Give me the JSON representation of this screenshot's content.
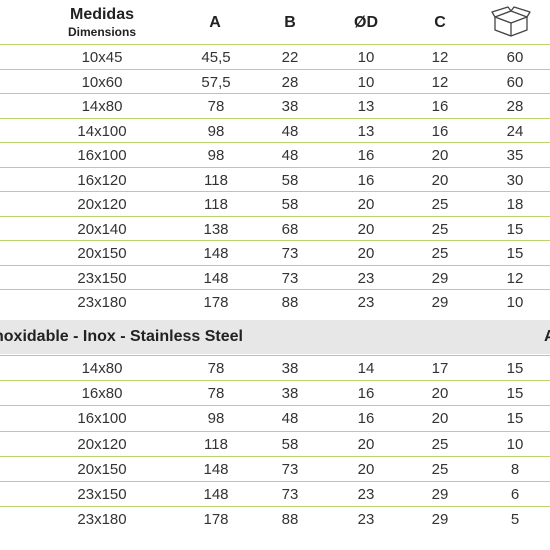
{
  "header": {
    "medidas": "Medidas",
    "dimensions": "Dimensions",
    "col_a": "A",
    "col_b": "B",
    "col_d": "ØD",
    "col_c": "C",
    "box_icon": "box-icon"
  },
  "colors": {
    "divider": "#b9d46a",
    "band": "#e7e7e7"
  },
  "table1": [
    [
      "10x45",
      "45,5",
      "22",
      "10",
      "12",
      "60"
    ],
    [
      "10x60",
      "57,5",
      "28",
      "10",
      "12",
      "60"
    ],
    [
      "14x80",
      "78",
      "38",
      "13",
      "16",
      "28"
    ],
    [
      "14x100",
      "98",
      "48",
      "13",
      "16",
      "24"
    ],
    [
      "16x100",
      "98",
      "48",
      "16",
      "20",
      "35"
    ],
    [
      "16x120",
      "118",
      "58",
      "16",
      "20",
      "30"
    ],
    [
      "20x120",
      "118",
      "58",
      "20",
      "25",
      "18"
    ],
    [
      "20x140",
      "138",
      "68",
      "20",
      "25",
      "15"
    ],
    [
      "20x150",
      "148",
      "73",
      "20",
      "25",
      "15"
    ],
    [
      "23x150",
      "148",
      "73",
      "23",
      "29",
      "12"
    ],
    [
      "23x180",
      "178",
      "88",
      "23",
      "29",
      "10"
    ]
  ],
  "band": {
    "title": "noxidable - Inox - Stainless Steel",
    "tail": "A"
  },
  "table2": [
    [
      "14x80",
      "78",
      "38",
      "14",
      "17",
      "15"
    ],
    [
      "16x80",
      "78",
      "38",
      "16",
      "20",
      "15"
    ],
    [
      "16x100",
      "98",
      "48",
      "16",
      "20",
      "15"
    ],
    [
      "20x120",
      "118",
      "58",
      "20",
      "25",
      "10"
    ],
    [
      "20x150",
      "148",
      "73",
      "20",
      "25",
      "8"
    ],
    [
      "23x150",
      "148",
      "73",
      "23",
      "29",
      "6"
    ],
    [
      "23x180",
      "178",
      "88",
      "23",
      "29",
      "5"
    ]
  ]
}
